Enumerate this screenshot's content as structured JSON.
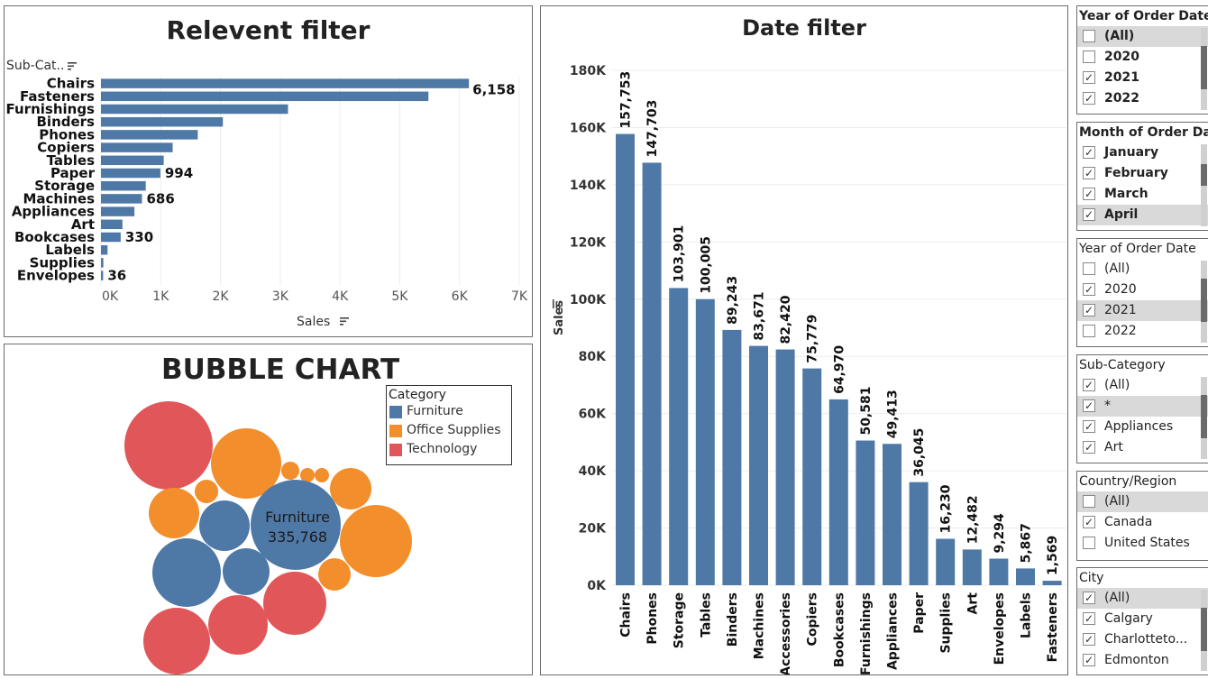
{
  "relevant": {
    "title": "Relevent filter",
    "y_field": "Sub-Cat..",
    "x_field": "Sales",
    "sort_icon": "sort-icon",
    "x_ticks": [
      "0K",
      "1K",
      "2K",
      "3K",
      "4K",
      "5K",
      "6K",
      "7K"
    ],
    "x_max": 7000
  },
  "date": {
    "title": "Date filter",
    "y_field": "Sales",
    "y_ticks": [
      "0K",
      "20K",
      "40K",
      "60K",
      "80K",
      "100K",
      "120K",
      "140K",
      "160K",
      "180K"
    ],
    "y_max": 180000
  },
  "bubble": {
    "title": "BUBBLE CHART",
    "legend_title": "Category",
    "legend": [
      {
        "name": "Furniture",
        "color": "#4e79a7"
      },
      {
        "name": "Office Supplies",
        "color": "#f28e2b"
      },
      {
        "name": "Technology",
        "color": "#e15759"
      }
    ],
    "label_name": "Furniture",
    "label_value": "335,768"
  },
  "filters": [
    {
      "title": "Year of Order Date",
      "items": [
        {
          "label": "(All)",
          "checked": false,
          "hl": true,
          "bold": true
        },
        {
          "label": "2020",
          "checked": false,
          "hl": false,
          "bold": true
        },
        {
          "label": "2021",
          "checked": true,
          "hl": false,
          "bold": true
        },
        {
          "label": "2022",
          "checked": true,
          "hl": false,
          "bold": true
        }
      ]
    },
    {
      "title": "Month of Order Date",
      "items": [
        {
          "label": "January",
          "checked": true,
          "hl": false,
          "bold": true
        },
        {
          "label": "February",
          "checked": true,
          "hl": false,
          "bold": true
        },
        {
          "label": "March",
          "checked": true,
          "hl": false,
          "bold": true
        },
        {
          "label": "April",
          "checked": true,
          "hl": true,
          "bold": true
        }
      ]
    },
    {
      "title": "Year of Order Date",
      "items": [
        {
          "label": "(All)",
          "checked": false,
          "hl": false,
          "bold": false
        },
        {
          "label": "2020",
          "checked": true,
          "hl": false,
          "bold": false
        },
        {
          "label": "2021",
          "checked": true,
          "hl": true,
          "bold": false
        },
        {
          "label": "2022",
          "checked": false,
          "hl": false,
          "bold": false
        }
      ]
    },
    {
      "title": "Sub-Category",
      "items": [
        {
          "label": "(All)",
          "checked": true,
          "hl": false,
          "bold": false
        },
        {
          "label": "*",
          "checked": true,
          "hl": true,
          "bold": false
        },
        {
          "label": "Appliances",
          "checked": true,
          "hl": false,
          "bold": false
        },
        {
          "label": "Art",
          "checked": true,
          "hl": false,
          "bold": false
        }
      ]
    },
    {
      "title": "Country/Region",
      "items": [
        {
          "label": "(All)",
          "checked": false,
          "hl": true,
          "bold": false
        },
        {
          "label": "Canada",
          "checked": true,
          "hl": false,
          "bold": false
        },
        {
          "label": "United States",
          "checked": false,
          "hl": false,
          "bold": false
        }
      ]
    },
    {
      "title": "City",
      "items": [
        {
          "label": "(All)",
          "checked": true,
          "hl": true,
          "bold": false
        },
        {
          "label": "Calgary",
          "checked": true,
          "hl": false,
          "bold": false
        },
        {
          "label": "Charlotteto...",
          "checked": true,
          "hl": false,
          "bold": false
        },
        {
          "label": "Edmonton",
          "checked": true,
          "hl": false,
          "bold": false
        }
      ]
    }
  ],
  "chart_data": [
    {
      "type": "bar",
      "orientation": "horizontal",
      "title": "Relevent filter",
      "xlabel": "Sales",
      "ylabel": "Sub-Cat..",
      "xlim": [
        0,
        7000
      ],
      "categories": [
        "Chairs",
        "Fasteners",
        "Furnishings",
        "Binders",
        "Phones",
        "Copiers",
        "Tables",
        "Paper",
        "Storage",
        "Machines",
        "Appliances",
        "Art",
        "Bookcases",
        "Labels",
        "Supplies",
        "Envelopes"
      ],
      "values": [
        6158,
        5480,
        3130,
        2040,
        1620,
        1200,
        1050,
        994,
        750,
        686,
        560,
        360,
        330,
        110,
        40,
        36
      ],
      "data_labels": {
        "Chairs": "6,158",
        "Paper": "994",
        "Machines": "686",
        "Bookcases": "330",
        "Envelopes": "36"
      },
      "color": "#4e79a7",
      "grid": true
    },
    {
      "type": "bar",
      "title": "Date filter",
      "xlabel": "",
      "ylabel": "Sales",
      "ylim": [
        0,
        180000
      ],
      "categories": [
        "Chairs",
        "Phones",
        "Storage",
        "Tables",
        "Binders",
        "Machines",
        "Accessories",
        "Copiers",
        "Bookcases",
        "Furnishings",
        "Appliances",
        "Paper",
        "Supplies",
        "Art",
        "Envelopes",
        "Labels",
        "Fasteners"
      ],
      "values": [
        157753,
        147703,
        103901,
        100005,
        89243,
        83671,
        82420,
        75779,
        64970,
        50581,
        49413,
        36045,
        16230,
        12482,
        9294,
        5867,
        1569
      ],
      "data_labels": [
        "157,753",
        "147,703",
        "103,901",
        "100,005",
        "89,243",
        "83,671",
        "82,420",
        "75,779",
        "64,970",
        "50,581",
        "49,413",
        "36,045",
        "16,230",
        "12,482",
        "9,294",
        "5,867",
        "1,569"
      ],
      "color": "#4e79a7",
      "grid": true
    },
    {
      "type": "bubble",
      "title": "BUBBLE CHART",
      "legend_title": "Category",
      "series": [
        {
          "name": "Furniture",
          "color": "#4e79a7",
          "values": [
            335768,
            180000,
            95000,
            90000
          ]
        },
        {
          "name": "Office Supplies",
          "color": "#f28e2b",
          "values": [
            185000,
            175000,
            90000,
            65000,
            42000,
            22000,
            13000,
            7000,
            5000
          ]
        },
        {
          "name": "Technology",
          "color": "#e15759",
          "values": [
            280000,
            160000,
            150000,
            135000
          ]
        }
      ],
      "labeled_value": {
        "name": "Furniture",
        "value": "335,768"
      },
      "legend_position": "top-right"
    }
  ]
}
